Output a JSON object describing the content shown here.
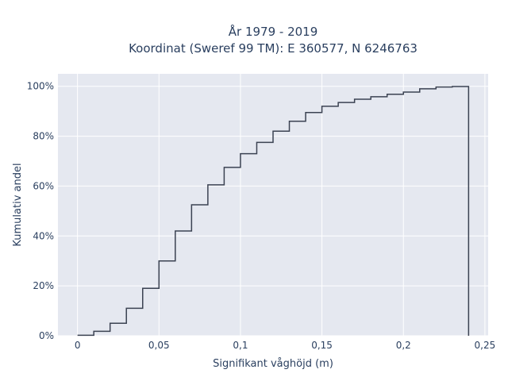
{
  "chart_data": {
    "type": "line",
    "line_shape": "step",
    "title_line1": "År 1979 - 2019",
    "title_line2": "Koordinat (Sweref 99 TM): E 360577, N 6246763",
    "xlabel": "Signifikant våghöjd (m)",
    "ylabel": "Kumulativ andel",
    "xlim": [
      -0.012,
      0.252
    ],
    "ylim": [
      0,
      1.05
    ],
    "x_ticks": [
      0,
      0.05,
      0.1,
      0.15,
      0.2,
      0.25
    ],
    "x_tick_labels": [
      "0",
      "0,05",
      "0,1",
      "0,15",
      "0,2",
      "0,25"
    ],
    "y_ticks": [
      0,
      0.2,
      0.4,
      0.6,
      0.8,
      1.0
    ],
    "y_tick_labels": [
      "0%",
      "20%",
      "40%",
      "60%",
      "80%",
      "100%"
    ],
    "grid": true,
    "colors": {
      "line": "#3b4252",
      "plot_bg": "#e5e8f0",
      "grid": "#ffffff",
      "text": "#2a3f5f"
    },
    "series": [
      {
        "x": [
          0,
          0.01,
          0.02,
          0.03,
          0.04,
          0.05,
          0.06,
          0.07,
          0.08,
          0.09,
          0.1,
          0.11,
          0.12,
          0.13,
          0.14,
          0.15,
          0.16,
          0.17,
          0.18,
          0.19,
          0.2,
          0.21,
          0.22,
          0.23,
          0.24
        ],
        "y": [
          0.002,
          0.018,
          0.05,
          0.11,
          0.19,
          0.3,
          0.42,
          0.525,
          0.605,
          0.675,
          0.73,
          0.775,
          0.82,
          0.86,
          0.895,
          0.92,
          0.935,
          0.948,
          0.958,
          0.968,
          0.977,
          0.99,
          0.997,
          0.999,
          0
        ]
      }
    ]
  }
}
